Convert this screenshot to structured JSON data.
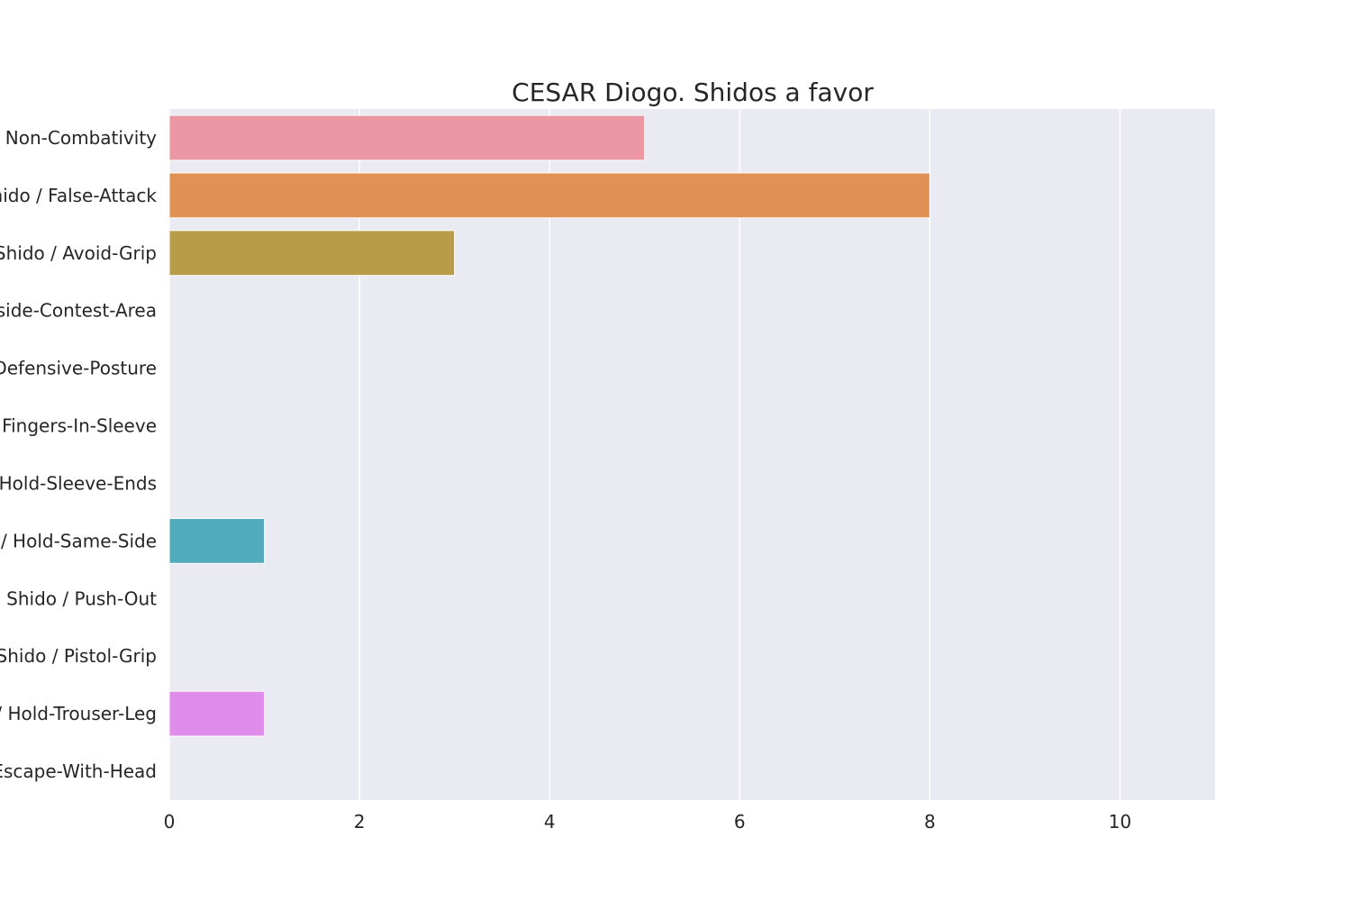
{
  "chart_data": {
    "type": "bar",
    "orientation": "horizontal",
    "title": "CESAR Diogo. Shidos a favor",
    "xlabel": "",
    "ylabel": "",
    "categories": [
      "Shido / Non-Combativity",
      "Shido / False-Attack",
      "Shido / Avoid-Grip",
      "Shido / Outside-Contest-Area",
      "Shido / Defensive-Posture",
      "Shido / Fingers-In-Sleeve",
      "Shido / Hold-Sleeve-Ends",
      "Shido / Hold-Same-Side",
      "Shido / Push-Out",
      "Shido / Pistol-Grip",
      "Shido / Hold-Trouser-Leg",
      "Shido / Escape-With-Head"
    ],
    "values": [
      5,
      8,
      3,
      0,
      0,
      0,
      0,
      1,
      0,
      0,
      1,
      0
    ],
    "xlim": [
      0,
      11
    ],
    "xticks": [
      0,
      2,
      4,
      6,
      8,
      10
    ],
    "grid": true,
    "background_color": "#EAEAF2",
    "grid_color": "#FFFFFF",
    "bar_colors": [
      "#EA96A3",
      "#E19153",
      "#B89C49",
      "#98A246",
      "#67AB47",
      "#4DAA91",
      "#4FAA9E",
      "#51ABBD",
      "#6AA8E1",
      "#B49BE8",
      "#E08CEA",
      "#EC92C2"
    ]
  }
}
